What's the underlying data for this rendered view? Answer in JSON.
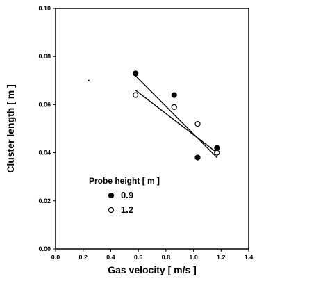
{
  "chart_data": {
    "type": "scatter",
    "xlabel": "Gas velocity [ m/s ]",
    "ylabel": "Cluster length [ m ]",
    "xlim": [
      0.0,
      1.4
    ],
    "ylim": [
      0.0,
      0.1
    ],
    "x_ticks": [
      0.0,
      0.2,
      0.4,
      0.6,
      0.8,
      1.0,
      1.2,
      1.4
    ],
    "x_tick_labels": [
      "0.0",
      "0.2",
      "0.4",
      "0.6",
      "0.8",
      "1.0",
      "1.2",
      "1.4"
    ],
    "y_ticks": [
      0.0,
      0.02,
      0.04,
      0.06,
      0.08,
      0.1
    ],
    "y_tick_labels": [
      "0.00",
      "0.02",
      "0.04",
      "0.06",
      "0.08",
      "0.10"
    ],
    "grid": false,
    "legend": {
      "title": "Probe height [ m ]",
      "placement": "lower-left"
    },
    "series": [
      {
        "name": "0.9",
        "marker": "filled-circle",
        "color": "#000000",
        "points": [
          {
            "x": 0.58,
            "y": 0.073
          },
          {
            "x": 0.86,
            "y": 0.064
          },
          {
            "x": 1.03,
            "y": 0.038
          },
          {
            "x": 1.17,
            "y": 0.042
          }
        ],
        "fit_line": {
          "x": [
            0.58,
            1.17
          ],
          "y": [
            0.072,
            0.038
          ]
        }
      },
      {
        "name": "1.2",
        "marker": "open-circle",
        "color": "#000000",
        "points": [
          {
            "x": 0.58,
            "y": 0.064
          },
          {
            "x": 0.86,
            "y": 0.059
          },
          {
            "x": 1.03,
            "y": 0.052
          },
          {
            "x": 1.17,
            "y": 0.04
          }
        ],
        "fit_line": {
          "x": [
            0.58,
            1.17
          ],
          "y": [
            0.066,
            0.04
          ]
        }
      }
    ],
    "annotations": [
      {
        "type": "dot",
        "x": 0.24,
        "y": 0.07
      }
    ]
  }
}
